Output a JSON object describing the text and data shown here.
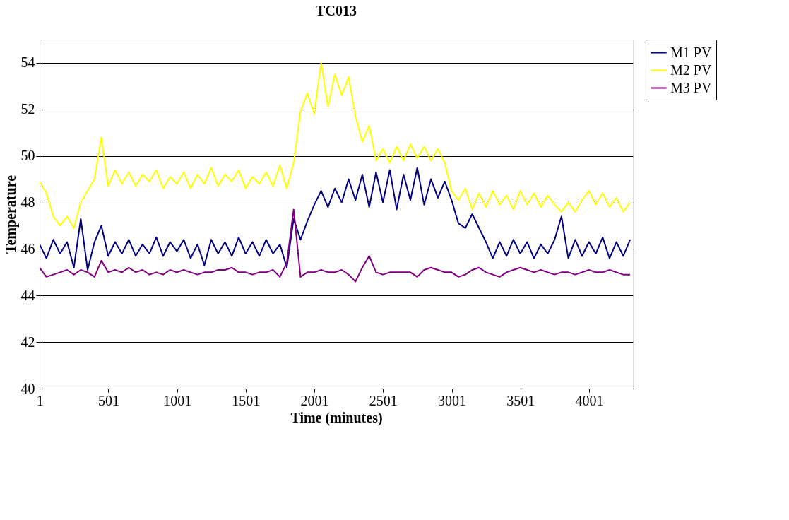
{
  "chart_data": {
    "type": "line",
    "title": "TC013",
    "xlabel": "Time (minutes)",
    "ylabel": "Temperature",
    "x": [
      0,
      50,
      100,
      150,
      200,
      250,
      300,
      350,
      400,
      450,
      500,
      550,
      600,
      650,
      700,
      750,
      800,
      850,
      900,
      950,
      1000,
      1050,
      1100,
      1150,
      1200,
      1250,
      1300,
      1350,
      1400,
      1450,
      1500,
      1550,
      1600,
      1650,
      1700,
      1750,
      1800,
      1850,
      1900,
      1950,
      2000,
      2050,
      2100,
      2150,
      2200,
      2250,
      2300,
      2350,
      2400,
      2450,
      2500,
      2550,
      2600,
      2650,
      2700,
      2750,
      2800,
      2850,
      2900,
      2950,
      3000,
      3050,
      3100,
      3150,
      3200,
      3250,
      3300,
      3350,
      3400,
      3450,
      3500,
      3550,
      3600,
      3650,
      3700,
      3750,
      3800,
      3850,
      3900,
      3950,
      4000,
      4050,
      4100,
      4150,
      4200,
      4250,
      4300
    ],
    "series": [
      {
        "name": "M1 PV",
        "color": "#000080",
        "values": [
          46.2,
          45.6,
          46.4,
          45.8,
          46.3,
          45.2,
          47.3,
          45.1,
          46.3,
          47.0,
          45.7,
          46.3,
          45.8,
          46.4,
          45.7,
          46.2,
          45.8,
          46.5,
          45.7,
          46.3,
          45.9,
          46.4,
          45.6,
          46.2,
          45.3,
          46.4,
          45.8,
          46.3,
          45.7,
          46.5,
          45.8,
          46.3,
          45.7,
          46.4,
          45.8,
          46.2,
          45.2,
          47.3,
          46.4,
          47.2,
          47.9,
          48.5,
          47.8,
          48.6,
          48.0,
          49.0,
          48.1,
          49.2,
          47.8,
          49.3,
          48.0,
          49.4,
          47.7,
          49.2,
          48.1,
          49.5,
          47.9,
          49.0,
          48.2,
          48.9,
          48.1,
          47.1,
          46.9,
          47.5,
          46.9,
          46.3,
          45.6,
          46.3,
          45.7,
          46.4,
          45.8,
          46.3,
          45.6,
          46.2,
          45.8,
          46.4,
          47.4,
          45.6,
          46.4,
          45.7,
          46.3,
          45.8,
          46.5,
          45.6,
          46.3,
          45.7,
          46.4
        ]
      },
      {
        "name": "M2 PV",
        "color": "#ffff00",
        "values": [
          48.9,
          48.4,
          47.4,
          47.0,
          47.4,
          46.9,
          48.0,
          48.5,
          49.0,
          50.8,
          48.7,
          49.4,
          48.8,
          49.3,
          48.7,
          49.2,
          48.9,
          49.4,
          48.6,
          49.1,
          48.8,
          49.3,
          48.6,
          49.2,
          48.8,
          49.5,
          48.7,
          49.2,
          48.9,
          49.4,
          48.6,
          49.1,
          48.8,
          49.3,
          48.7,
          49.6,
          48.6,
          49.7,
          51.9,
          52.7,
          51.8,
          54.0,
          52.1,
          53.5,
          52.6,
          53.4,
          51.7,
          50.6,
          51.3,
          49.8,
          50.3,
          49.7,
          50.4,
          49.8,
          50.5,
          49.9,
          50.4,
          49.8,
          50.3,
          49.7,
          48.5,
          48.1,
          48.6,
          47.7,
          48.4,
          47.8,
          48.5,
          47.9,
          48.3,
          47.7,
          48.5,
          47.9,
          48.4,
          47.8,
          48.3,
          47.9,
          47.6,
          48.0,
          47.6,
          48.1,
          48.5,
          47.9,
          48.4,
          47.8,
          48.2,
          47.6,
          48.0
        ]
      },
      {
        "name": "M3 PV",
        "color": "#800080",
        "values": [
          45.2,
          44.8,
          44.9,
          45.0,
          45.1,
          44.9,
          45.1,
          45.0,
          44.8,
          45.5,
          45.0,
          45.1,
          45.0,
          45.2,
          45.0,
          45.1,
          44.9,
          45.0,
          44.9,
          45.1,
          45.0,
          45.1,
          45.0,
          44.9,
          45.0,
          45.0,
          45.1,
          45.1,
          45.2,
          45.0,
          45.0,
          44.9,
          45.0,
          45.0,
          45.1,
          44.8,
          45.4,
          47.7,
          44.8,
          45.0,
          45.0,
          45.1,
          45.0,
          45.0,
          45.1,
          44.9,
          44.6,
          45.2,
          45.7,
          45.0,
          44.9,
          45.0,
          45.0,
          45.0,
          45.0,
          44.8,
          45.1,
          45.2,
          45.1,
          45.0,
          45.0,
          44.8,
          44.9,
          45.1,
          45.2,
          45.0,
          44.9,
          44.8,
          45.0,
          45.1,
          45.2,
          45.1,
          45.0,
          45.1,
          45.0,
          44.9,
          45.0,
          45.0,
          44.9,
          45.0,
          45.1,
          45.0,
          45.0,
          45.1,
          45.0,
          44.9,
          44.9
        ]
      }
    ],
    "xlim": [
      0,
      4320
    ],
    "xticks": [
      1,
      501,
      1001,
      1501,
      2001,
      2501,
      3001,
      3501,
      4001
    ],
    "ylim": [
      40,
      55
    ],
    "yticks": [
      40,
      42,
      44,
      46,
      48,
      50,
      52,
      54
    ],
    "grid": "y",
    "legend": "right",
    "marker": "none",
    "line_style": "solid"
  }
}
